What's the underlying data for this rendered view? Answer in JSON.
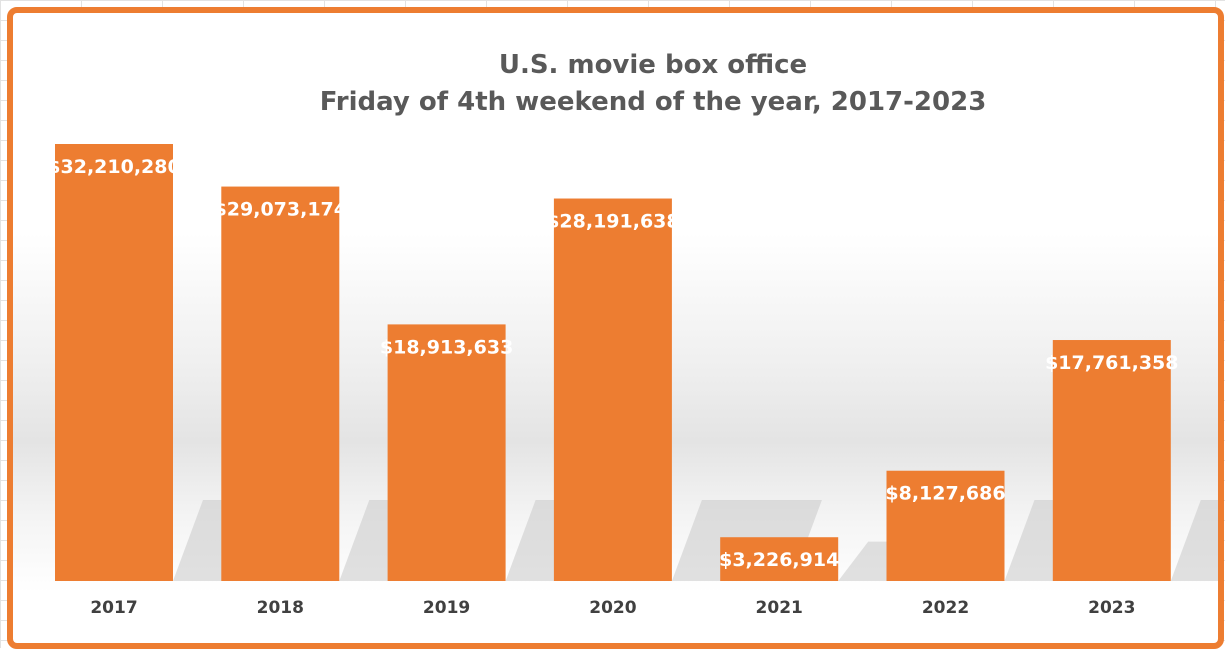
{
  "chart_data": {
    "type": "bar",
    "title": "U.S. movie box office",
    "subtitle": "Friday of 4th weekend of the year, 2017-2023",
    "categories": [
      "2017",
      "2018",
      "2019",
      "2020",
      "2021",
      "2022",
      "2023"
    ],
    "values": [
      32210280,
      29073174,
      18913633,
      28191638,
      3226914,
      8127686,
      17761358
    ],
    "data_labels": [
      "$32,210,280",
      "$29,073,174",
      "$18,913,633",
      "$28,191,638",
      "$3,226,914",
      "$8,127,686",
      "$17,761,358"
    ],
    "xlabel": "",
    "ylabel": "",
    "ylim": [
      0,
      32210280
    ],
    "grid": false,
    "legend": "none",
    "bar_color": "#ED7D31"
  }
}
